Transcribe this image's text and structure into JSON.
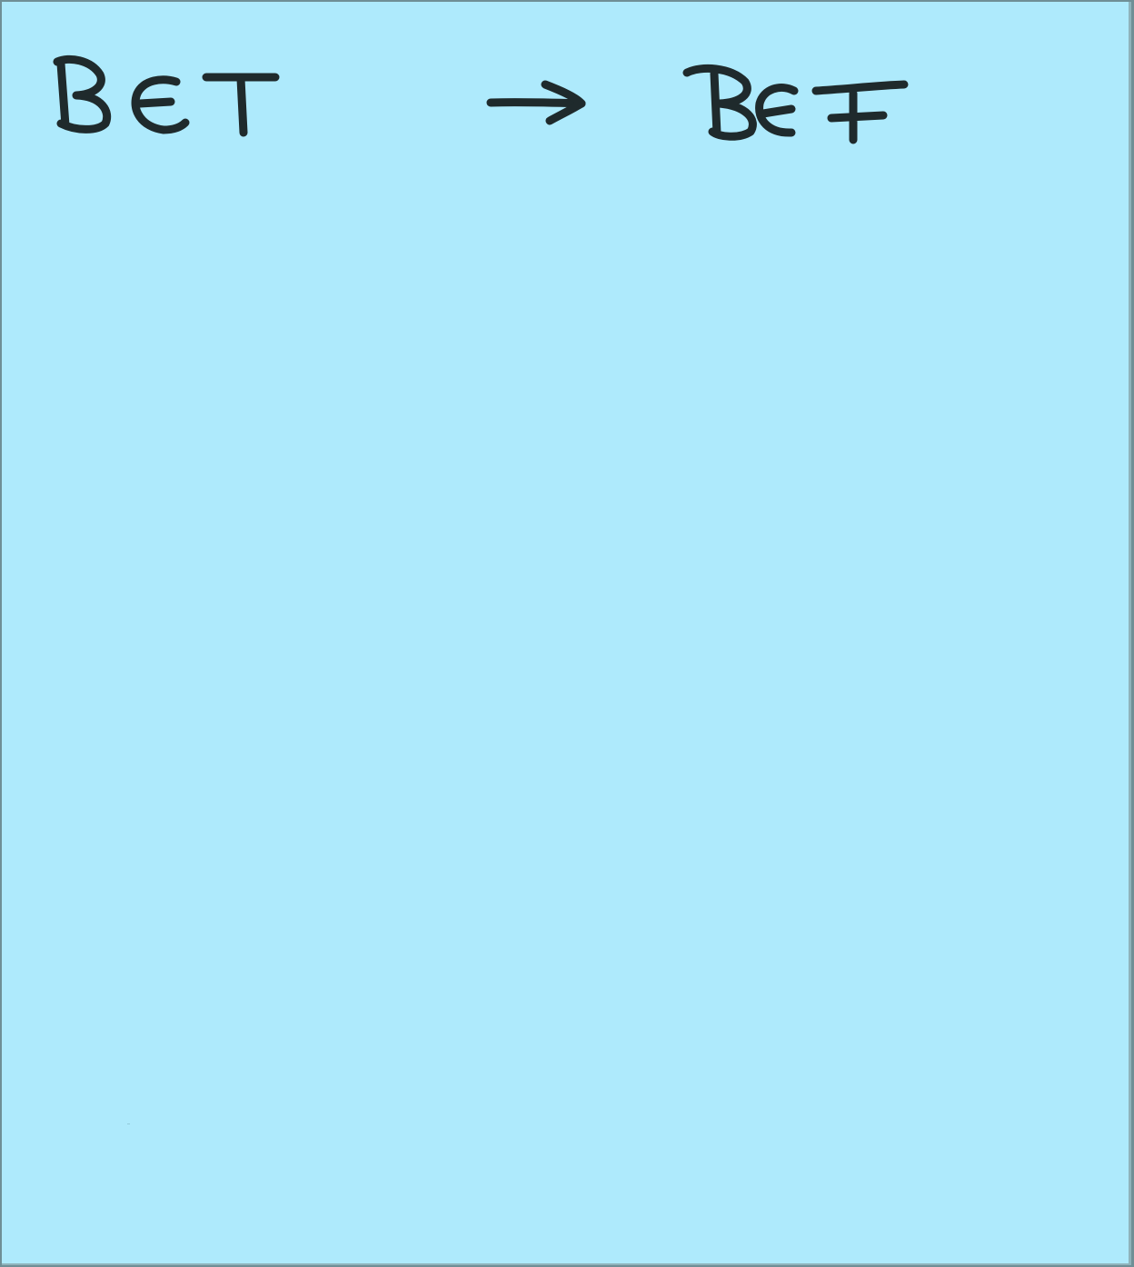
{
  "note": {
    "background_color": "#aeeafc",
    "ink_color": "#1f2a2c",
    "word_left": "BET",
    "arrow": "→",
    "word_right": "BEF"
  }
}
